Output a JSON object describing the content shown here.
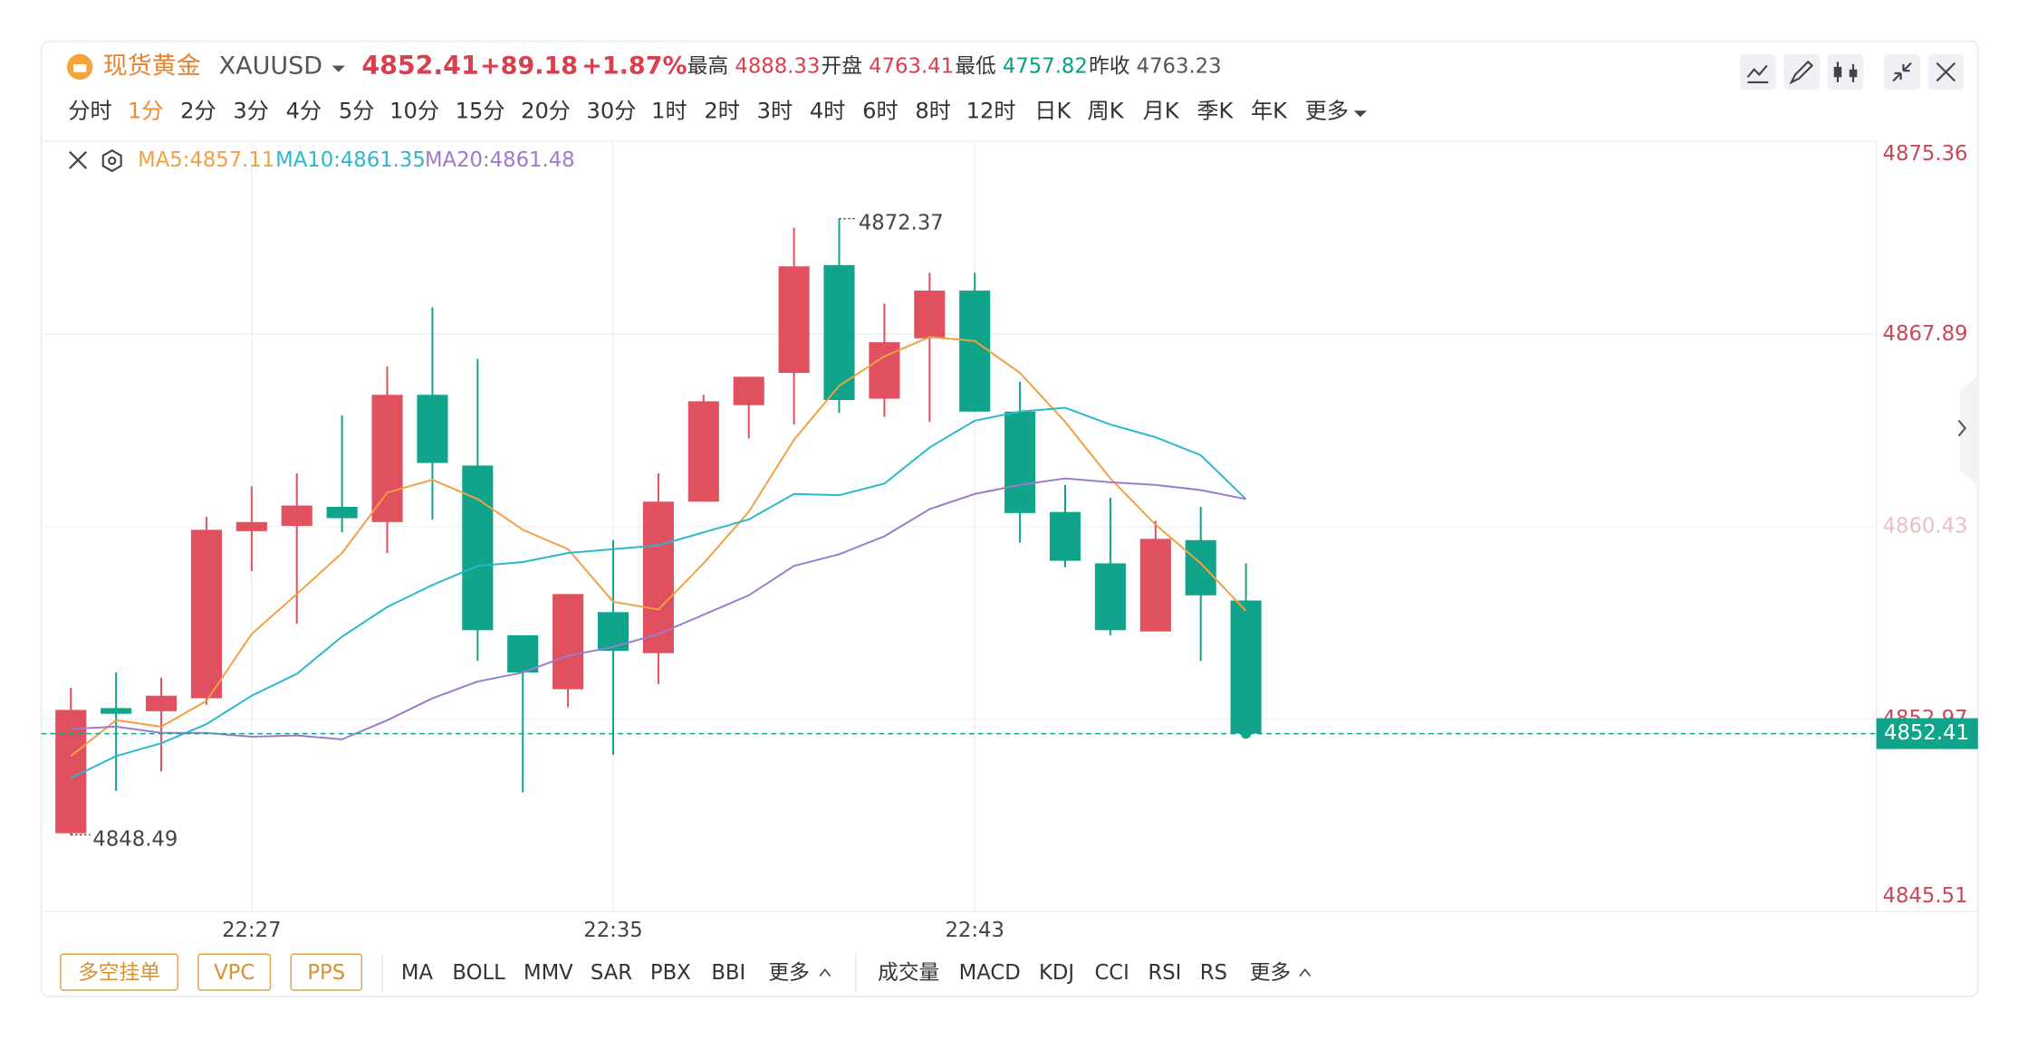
{
  "header": {
    "name": "现货黄金",
    "symbol": "XAUUSD",
    "price": "4852.41",
    "change": "+89.18",
    "change_pct": "+1.87%",
    "stats": [
      {
        "label": "最高",
        "value": "4888.33",
        "color": "#d8404f"
      },
      {
        "label": "开盘",
        "value": "4763.41",
        "color": "#d8404f"
      },
      {
        "label": "最低",
        "value": "4757.82",
        "color": "#0a9c80"
      },
      {
        "label": "昨收",
        "value": "4763.23",
        "color": "#555555"
      }
    ]
  },
  "periods": [
    "分时",
    "1分",
    "2分",
    "3分",
    "4分",
    "5分",
    "10分",
    "15分",
    "20分",
    "30分",
    "1时",
    "2时",
    "3时",
    "4时",
    "6时",
    "8时",
    "12时",
    "日K",
    "周K",
    "月K",
    "季K",
    "年K",
    "更多"
  ],
  "active_period": 1,
  "bottom_buttons": [
    "多空挂单",
    "VPC",
    "PPS"
  ],
  "main_indicators": [
    "MA",
    "BOLL",
    "MMV",
    "SAR",
    "PBX",
    "BBI",
    "更多"
  ],
  "sub_indicators": [
    "成交量",
    "MACD",
    "KDJ",
    "CCI",
    "RSI",
    "RS",
    "更多"
  ],
  "chart_data": {
    "type": "candlestick",
    "categories": [
      null,
      null,
      null,
      null,
      "22:27",
      null,
      null,
      null,
      null,
      null,
      null,
      null,
      "22:35",
      null,
      null,
      null,
      null,
      null,
      null,
      null,
      "22:43",
      null,
      null,
      null,
      null,
      null,
      null
    ],
    "open": [
      4848.55,
      4853.4,
      4853.28,
      4853.78,
      4860.26,
      4860.46,
      4861.2,
      4860.61,
      4865.54,
      4862.8,
      4856.22,
      4854.13,
      4857.12,
      4855.53,
      4861.4,
      4865.14,
      4866.39,
      4870.57,
      4865.39,
      4867.73,
      4869.58,
      4864.89,
      4861.0,
      4859.01,
      4856.37,
      4859.91,
      4857.57
    ],
    "high": [
      4854.18,
      4854.78,
      4854.58,
      4860.81,
      4862.0,
      4862.5,
      4864.74,
      4866.64,
      4868.93,
      4866.94,
      4856.22,
      4857.82,
      4859.91,
      4862.5,
      4865.54,
      4866.24,
      4872.02,
      4872.37,
      4869.08,
      4870.27,
      4870.27,
      4866.04,
      4862.05,
      4861.55,
      4860.66,
      4861.2,
      4859.01
    ],
    "low": [
      4848.49,
      4850.19,
      4850.94,
      4853.53,
      4858.71,
      4856.67,
      4860.21,
      4859.41,
      4860.71,
      4855.23,
      4850.14,
      4853.43,
      4851.59,
      4854.33,
      4861.4,
      4863.85,
      4864.39,
      4864.84,
      4864.69,
      4864.49,
      4864.89,
      4859.81,
      4858.86,
      4856.22,
      4856.37,
      4855.23,
      4852.41
    ],
    "close": [
      4853.33,
      4853.18,
      4853.88,
      4860.31,
      4860.61,
      4861.25,
      4860.76,
      4865.54,
      4862.9,
      4856.42,
      4854.78,
      4857.82,
      4855.62,
      4861.4,
      4865.29,
      4866.24,
      4870.52,
      4865.34,
      4867.58,
      4869.58,
      4864.89,
      4860.96,
      4859.11,
      4856.42,
      4859.96,
      4857.77,
      4852.41
    ],
    "up_color": "#e0505f",
    "down_color": "#10a58b",
    "series": [
      {
        "name": "MA5:4857.11",
        "color": "#f2a043",
        "values": [
          4851.54,
          4852.93,
          4852.68,
          4853.68,
          4856.27,
          4857.82,
          4859.41,
          4861.75,
          4862.25,
          4861.5,
          4860.31,
          4859.56,
          4857.52,
          4857.22,
          4859.01,
          4861.01,
          4863.8,
          4865.89,
          4867.03,
          4867.78,
          4867.63,
          4866.39,
          4864.49,
          4862.3,
          4860.51,
          4859.01,
          4857.17
        ]
      },
      {
        "name": "MA10:4861.35",
        "color": "#2bb8cc",
        "values": [
          4850.69,
          4851.54,
          4852.04,
          4852.78,
          4853.88,
          4854.73,
          4856.17,
          4857.32,
          4858.17,
          4858.91,
          4859.06,
          4859.41,
          4859.56,
          4859.71,
          4860.21,
          4860.71,
          4861.7,
          4861.65,
          4862.1,
          4863.5,
          4864.54,
          4864.89,
          4865.04,
          4864.39,
          4863.9,
          4863.2,
          4861.5
        ]
      },
      {
        "name": "MA20:4861.48",
        "color": "#9b7bcb",
        "values": [
          4852.59,
          4852.68,
          4852.44,
          4852.44,
          4852.29,
          4852.34,
          4852.19,
          4852.93,
          4853.78,
          4854.43,
          4854.78,
          4855.43,
          4855.77,
          4856.27,
          4857.02,
          4857.77,
          4858.91,
          4859.36,
          4860.06,
          4861.11,
          4861.7,
          4862.05,
          4862.3,
          4862.15,
          4862.05,
          4861.85,
          4861.5
        ]
      }
    ],
    "ylim": [
      4845.51,
      4875.36
    ],
    "yticks": [
      4845.51,
      4852.97,
      4860.43,
      4867.89,
      4875.36
    ],
    "grid": true
  }
}
